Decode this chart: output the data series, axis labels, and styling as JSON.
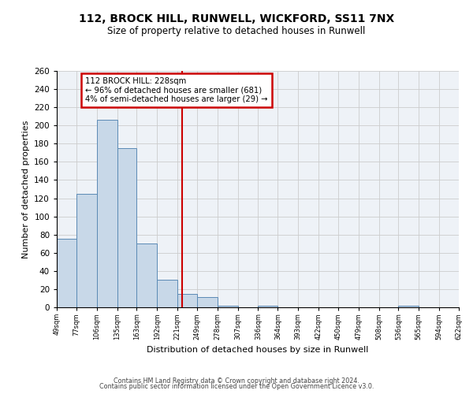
{
  "title": "112, BROCK HILL, RUNWELL, WICKFORD, SS11 7NX",
  "subtitle": "Size of property relative to detached houses in Runwell",
  "xlabel": "Distribution of detached houses by size in Runwell",
  "ylabel": "Number of detached properties",
  "footer1": "Contains HM Land Registry data © Crown copyright and database right 2024.",
  "footer2": "Contains public sector information licensed under the Open Government Licence v3.0.",
  "bin_edges": [
    49,
    77,
    106,
    135,
    163,
    192,
    221,
    249,
    278,
    307,
    336,
    364,
    393,
    422,
    450,
    479,
    508,
    536,
    565,
    594,
    622
  ],
  "bar_heights": [
    75,
    125,
    206,
    175,
    70,
    30,
    15,
    11,
    2,
    0,
    2,
    0,
    0,
    0,
    0,
    0,
    0,
    2,
    0,
    0
  ],
  "bar_color": "#c8d8e8",
  "bar_edge_color": "#5b8ab5",
  "grid_color": "#cccccc",
  "background_color": "#eef2f7",
  "red_line_x": 228,
  "annotation_title": "112 BROCK HILL: 228sqm",
  "annotation_line1": "← 96% of detached houses are smaller (681)",
  "annotation_line2": "4% of semi-detached houses are larger (29) →",
  "annotation_box_color": "#cc0000",
  "ylim": [
    0,
    260
  ],
  "yticks": [
    0,
    20,
    40,
    60,
    80,
    100,
    120,
    140,
    160,
    180,
    200,
    220,
    240,
    260
  ]
}
